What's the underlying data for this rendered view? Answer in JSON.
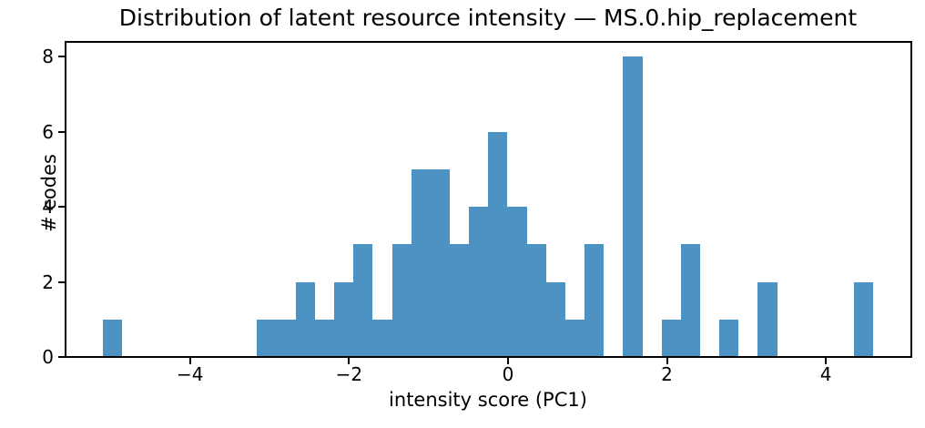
{
  "chart_data": {
    "type": "bar",
    "histogram": true,
    "title": "Distribution of latent resource intensity — MS.0.hip_replacement",
    "xlabel": "intensity score (PC1)",
    "ylabel": "# codes",
    "bar_color": "#4c92c3",
    "grid": false,
    "legend_position": "none",
    "bin_start": -5.094,
    "bin_width": 0.2423,
    "counts": [
      1,
      0,
      0,
      0,
      0,
      0,
      0,
      0,
      1,
      1,
      2,
      1,
      2,
      3,
      1,
      3,
      5,
      5,
      3,
      4,
      6,
      4,
      3,
      2,
      1,
      3,
      0,
      8,
      0,
      1,
      3,
      0,
      1,
      0,
      2,
      0,
      0,
      0,
      0,
      2
    ],
    "xlim": [
      -5.578,
      5.081
    ],
    "ylim": [
      0,
      8.4
    ],
    "xticks": [
      -4,
      -2,
      0,
      2,
      4
    ],
    "xtick_labels": [
      "−4",
      "−2",
      "0",
      "2",
      "4"
    ],
    "yticks": [
      0,
      2,
      4,
      6,
      8
    ],
    "ytick_labels": [
      "0",
      "2",
      "4",
      "6",
      "8"
    ]
  }
}
